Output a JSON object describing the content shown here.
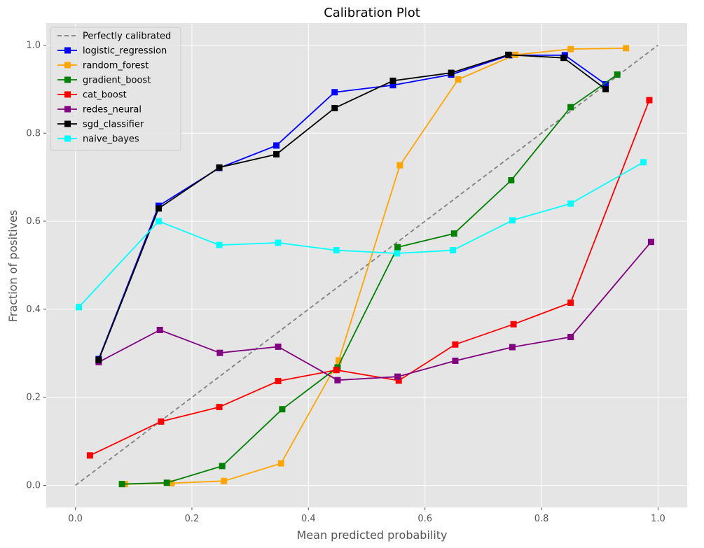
{
  "chart_data": {
    "type": "line",
    "title": "Calibration Plot",
    "xlabel": "Mean predicted probability",
    "ylabel": "Fraction of positives",
    "xlim": [
      -0.05,
      1.05
    ],
    "ylim": [
      -0.05,
      1.05
    ],
    "xticks": [
      "0.0",
      "0.2",
      "0.4",
      "0.6",
      "0.8",
      "1.0"
    ],
    "yticks": [
      "0.0",
      "0.2",
      "0.4",
      "0.6",
      "0.8",
      "1.0"
    ],
    "grid": true,
    "legend_position": "top-left",
    "reference": {
      "name": "Perfectly calibrated",
      "color": "#808080",
      "dash": true,
      "x": [
        0,
        1
      ],
      "y": [
        0,
        1
      ]
    },
    "series": [
      {
        "name": "logistic_regression",
        "color": "#0000ff",
        "x": [
          0.04,
          0.143,
          0.247,
          0.345,
          0.445,
          0.545,
          0.645,
          0.745,
          0.84,
          0.91
        ],
        "y": [
          0.287,
          0.635,
          0.721,
          0.772,
          0.893,
          0.909,
          0.933,
          0.977,
          0.977,
          0.911
        ]
      },
      {
        "name": "random_forest",
        "color": "#ffa500",
        "x": [
          0.085,
          0.165,
          0.255,
          0.353,
          0.452,
          0.557,
          0.657,
          0.755,
          0.85,
          0.945
        ],
        "y": [
          0.003,
          0.005,
          0.01,
          0.05,
          0.284,
          0.727,
          0.922,
          0.978,
          0.991,
          0.993
        ]
      },
      {
        "name": "gradient_boost",
        "color": "#008000",
        "x": [
          0.08,
          0.157,
          0.252,
          0.355,
          0.45,
          0.553,
          0.65,
          0.748,
          0.85,
          0.93
        ],
        "y": [
          0.003,
          0.006,
          0.044,
          0.173,
          0.268,
          0.541,
          0.572,
          0.693,
          0.859,
          0.933
        ]
      },
      {
        "name": "cat_boost",
        "color": "#ff0000",
        "x": [
          0.025,
          0.147,
          0.247,
          0.348,
          0.448,
          0.555,
          0.652,
          0.752,
          0.85,
          0.985
        ],
        "y": [
          0.068,
          0.145,
          0.178,
          0.237,
          0.262,
          0.238,
          0.32,
          0.366,
          0.415,
          0.875
        ]
      },
      {
        "name": "redes_neural",
        "color": "#800080",
        "x": [
          0.04,
          0.145,
          0.248,
          0.348,
          0.45,
          0.553,
          0.652,
          0.75,
          0.85,
          0.988
        ],
        "y": [
          0.28,
          0.353,
          0.301,
          0.315,
          0.239,
          0.247,
          0.283,
          0.314,
          0.337,
          0.553
        ]
      },
      {
        "name": "sgd_classifier",
        "color": "#000000",
        "x": [
          0.04,
          0.143,
          0.247,
          0.345,
          0.445,
          0.545,
          0.645,
          0.743,
          0.838,
          0.91
        ],
        "y": [
          0.285,
          0.629,
          0.722,
          0.752,
          0.857,
          0.919,
          0.937,
          0.978,
          0.971,
          0.9
        ]
      },
      {
        "name": "naive_bayes",
        "color": "#00ffff",
        "x": [
          0.006,
          0.143,
          0.247,
          0.348,
          0.448,
          0.552,
          0.648,
          0.75,
          0.85,
          0.975
        ],
        "y": [
          0.405,
          0.6,
          0.546,
          0.551,
          0.534,
          0.527,
          0.534,
          0.602,
          0.64,
          0.734
        ]
      }
    ]
  }
}
